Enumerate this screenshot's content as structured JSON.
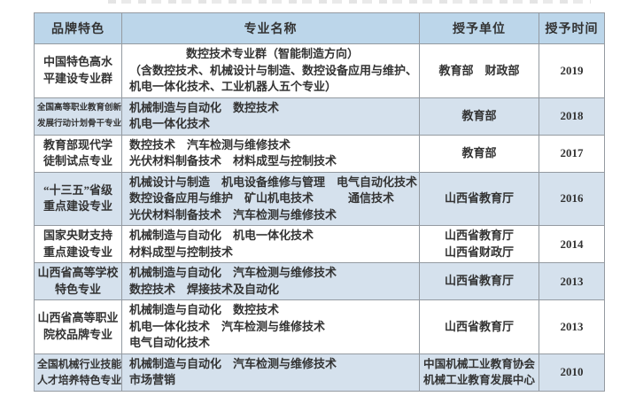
{
  "colors": {
    "header_bg": "#bcd6ea",
    "alt_row_bg": "#d5e1ed",
    "border": "#949aa1",
    "text": "#333333"
  },
  "table": {
    "headers": [
      "品牌特色",
      "专业名称",
      "授予单位",
      "授予时间"
    ],
    "rows": [
      {
        "brand": [
          "中国特色高水",
          "平建设专业群"
        ],
        "majors": [
          {
            "text": "数控技术专业群（智能制造方向）",
            "align": "center"
          },
          {
            "text": "（含数控技术、机械设计与制造、数控设备应用与维护、"
          },
          {
            "text": "机电一体化技术、工业机器人五个专业）"
          }
        ],
        "unit": [
          "教育部　财政部"
        ],
        "year": "2019"
      },
      {
        "brand": [
          "全国高等职业教育创新",
          "发展行动计划骨干专业"
        ],
        "majors": [
          {
            "text": "机械制造与自动化　数控技术"
          },
          {
            "text": "机电一体化技术"
          }
        ],
        "unit": [
          "教育部"
        ],
        "year": "2018"
      },
      {
        "brand": [
          "教育部现代学",
          "徒制试点专业"
        ],
        "majors": [
          {
            "text": "数控技术　汽车检测与维修技术"
          },
          {
            "text": "光伏材料制备技术　材料成型与控制技术"
          }
        ],
        "unit": [
          "教育部"
        ],
        "year": "2017"
      },
      {
        "brand": [
          "“十三五”省级",
          "重点建设专业"
        ],
        "majors": [
          {
            "text": "机械设计与制造　机电设备维修与管理　电气自动化技术"
          },
          {
            "text": "数控设备应用与维护　矿山机电技术　　　通信技术"
          },
          {
            "text": "光伏材料制备技术　汽车检测与维修技术"
          }
        ],
        "unit": [
          "山西省教育厅"
        ],
        "year": "2016"
      },
      {
        "brand": [
          "国家央财支持",
          "重点建设专业"
        ],
        "majors": [
          {
            "text": "机械制造与自动化　机电一体化技术"
          },
          {
            "text": "材料成型与控制技术"
          }
        ],
        "unit": [
          "山西省教育厅",
          "山西省财政厅"
        ],
        "year": "2014"
      },
      {
        "brand": [
          "山西省高等学校",
          "特色专业"
        ],
        "majors": [
          {
            "text": "机械制造与自动化　汽车检测与维修技术"
          },
          {
            "text": "数控技术　焊接技术及自动化"
          }
        ],
        "unit": [
          "山西省教育厅"
        ],
        "year": "2013"
      },
      {
        "brand": [
          "山西省高等职业",
          "院校品牌专业"
        ],
        "majors": [
          {
            "text": "机械制造与自动化　数控技术"
          },
          {
            "text": "机电一体化技术　汽车检测与维修技术"
          },
          {
            "text": "电气自动化技术"
          }
        ],
        "unit": [
          "山西省教育厅"
        ],
        "year": "2013"
      },
      {
        "brand": [
          "全国机械行业技能",
          "人才培养特色专业"
        ],
        "majors": [
          {
            "text": "机械制造与自动化　汽车检测与维修技术"
          },
          {
            "text": "市场营销"
          }
        ],
        "unit": [
          "中国机械工业教育协会",
          "机械工业教育发展中心"
        ],
        "year": "2010"
      }
    ]
  }
}
